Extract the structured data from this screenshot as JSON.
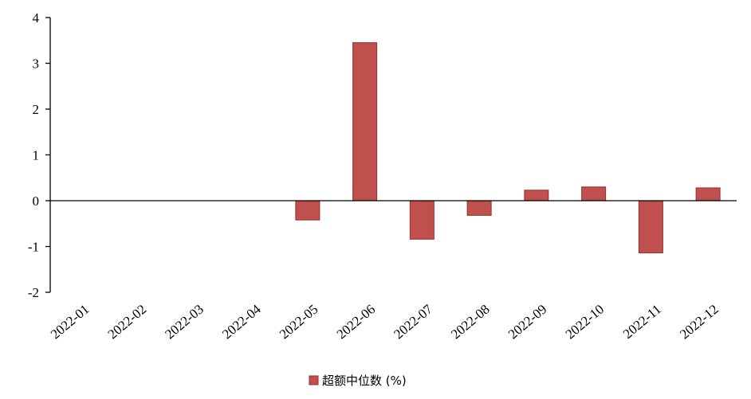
{
  "chart_data": {
    "type": "bar",
    "categories": [
      "2022-01",
      "2022-02",
      "2022-03",
      "2022-04",
      "2022-05",
      "2022-06",
      "2022-07",
      "2022-08",
      "2022-09",
      "2022-10",
      "2022-11",
      "2022-12"
    ],
    "series": [
      {
        "name": "超额中位数 (%)",
        "values": [
          null,
          null,
          null,
          null,
          -0.42,
          3.45,
          -0.84,
          -0.32,
          0.23,
          0.3,
          -1.14,
          0.28
        ]
      }
    ],
    "ylim": [
      -2,
      4
    ],
    "yticks": [
      -2,
      -1,
      0,
      1,
      2,
      3,
      4
    ],
    "legend_position": "bottom-center",
    "grid": false,
    "colors": {
      "bar": "#C0504D",
      "bar_edge": "#9B2D2A",
      "axis": "#000000"
    }
  }
}
